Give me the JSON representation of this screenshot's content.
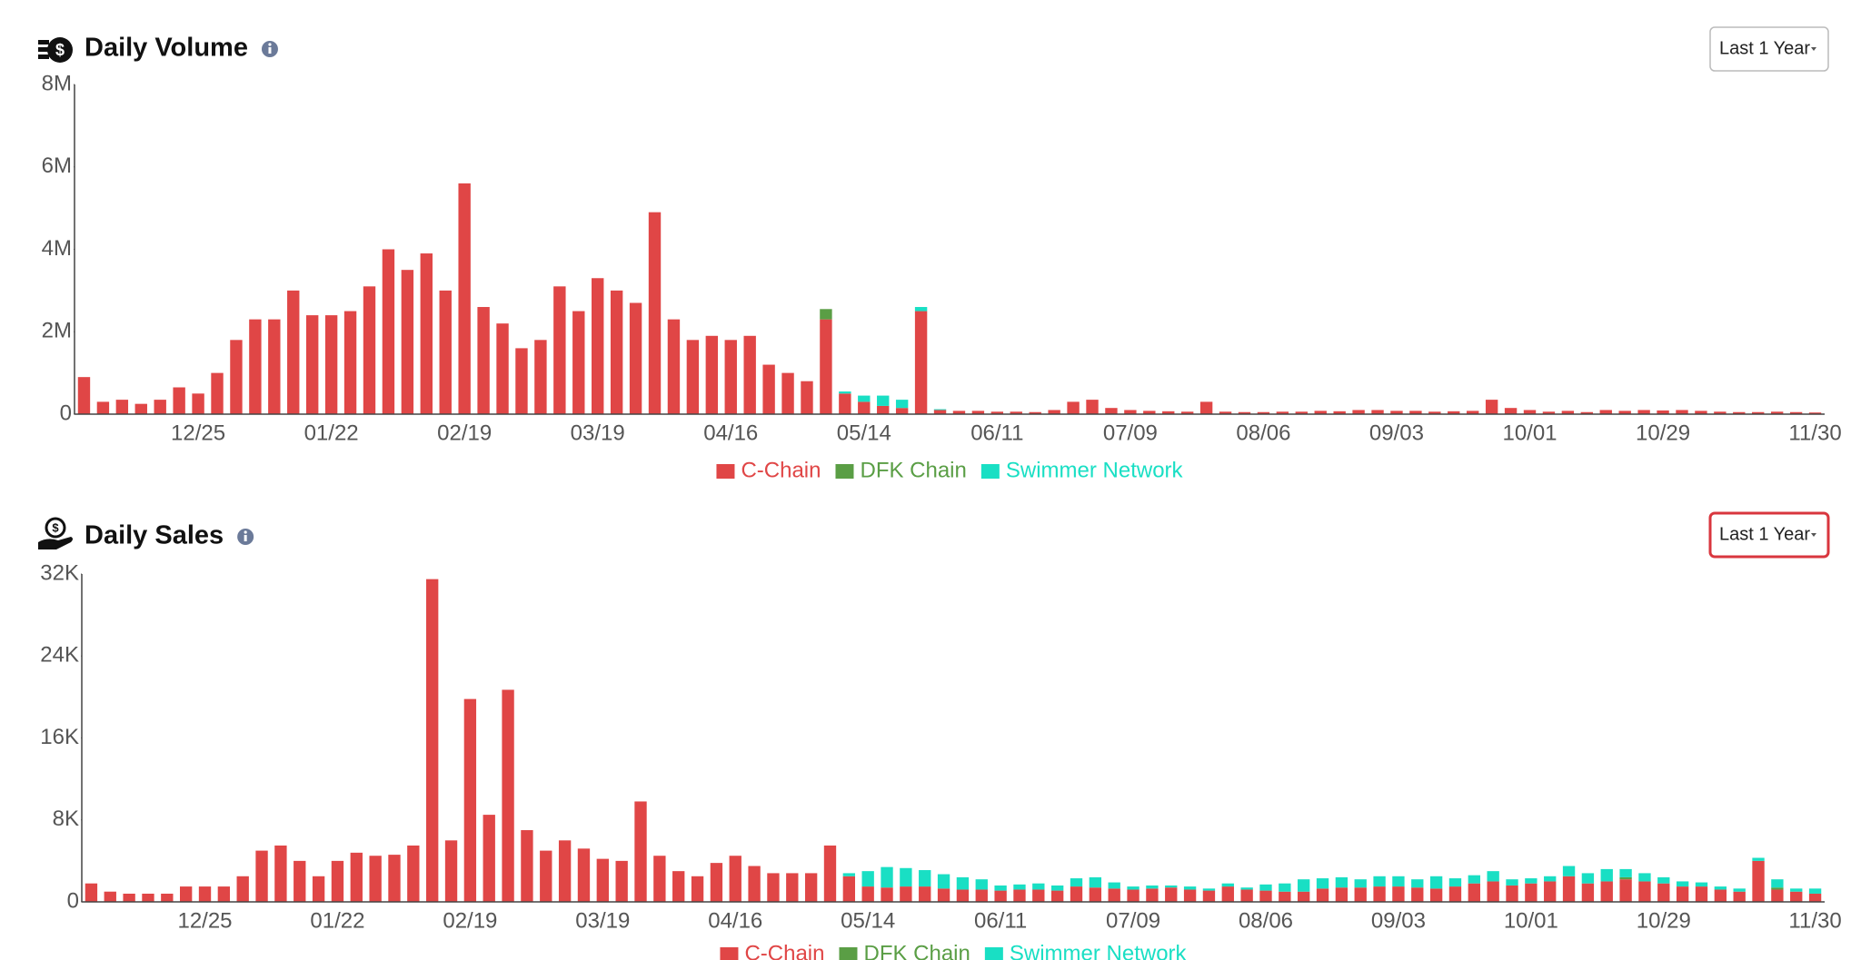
{
  "range_selectors": [
    "Last 1 Year",
    "Last 1 Year"
  ],
  "chart_data": [
    {
      "type": "bar",
      "stacked": true,
      "title": "Daily Volume",
      "categories": [
        null,
        null,
        null,
        null,
        null,
        null,
        "12/25",
        null,
        null,
        null,
        null,
        null,
        null,
        "01/22",
        null,
        null,
        null,
        null,
        null,
        null,
        "02/19",
        null,
        null,
        null,
        null,
        null,
        null,
        "03/19",
        null,
        null,
        null,
        null,
        null,
        null,
        "04/16",
        null,
        null,
        null,
        null,
        null,
        null,
        "05/14",
        null,
        null,
        null,
        null,
        null,
        null,
        "06/11",
        null,
        null,
        null,
        null,
        null,
        null,
        "07/09",
        null,
        null,
        null,
        null,
        null,
        null,
        "08/06",
        null,
        null,
        null,
        null,
        null,
        null,
        "09/03",
        null,
        null,
        null,
        null,
        null,
        null,
        "10/01",
        null,
        null,
        null,
        null,
        null,
        null,
        "10/29",
        null,
        null,
        null,
        null,
        null,
        null,
        null,
        "11/30"
      ],
      "series": [
        {
          "name": "C-Chain",
          "color": "#e04646",
          "values": [
            900000,
            300000,
            350000,
            250000,
            350000,
            650000,
            500000,
            1000000,
            1800000,
            2300000,
            2300000,
            3000000,
            2400000,
            2400000,
            2500000,
            3100000,
            4000000,
            3500000,
            3900000,
            3000000,
            5600000,
            2600000,
            2200000,
            1600000,
            1800000,
            3100000,
            2500000,
            3300000,
            3000000,
            2700000,
            4900000,
            2300000,
            1800000,
            1900000,
            1800000,
            1900000,
            1200000,
            1000000,
            800000,
            2300000,
            500000,
            300000,
            200000,
            150000,
            2500000,
            100000,
            80000,
            80000,
            60000,
            60000,
            50000,
            100000,
            300000,
            350000,
            150000,
            100000,
            80000,
            70000,
            60000,
            300000,
            60000,
            50000,
            50000,
            60000,
            60000,
            80000,
            70000,
            100000,
            100000,
            80000,
            80000,
            60000,
            70000,
            80000,
            350000,
            150000,
            100000,
            60000,
            80000,
            50000,
            100000,
            80000,
            100000,
            90000,
            100000,
            80000,
            60000,
            50000,
            50000,
            60000,
            50000,
            40000
          ]
        },
        {
          "name": "DFK Chain",
          "color": "#5a9e45",
          "values": [
            0,
            0,
            0,
            0,
            0,
            0,
            0,
            0,
            0,
            0,
            0,
            0,
            0,
            0,
            0,
            0,
            0,
            0,
            0,
            0,
            0,
            0,
            0,
            0,
            0,
            0,
            0,
            0,
            0,
            0,
            0,
            0,
            0,
            0,
            0,
            0,
            0,
            0,
            0,
            250000,
            0,
            0,
            0,
            0,
            0,
            0,
            0,
            0,
            0,
            0,
            0,
            0,
            0,
            0,
            0,
            0,
            0,
            0,
            0,
            0,
            0,
            0,
            0,
            0,
            0,
            0,
            0,
            0,
            0,
            0,
            0,
            0,
            0,
            0,
            0,
            0,
            0,
            0,
            0,
            0,
            0,
            0,
            0,
            0,
            0,
            0,
            0,
            0,
            0,
            0,
            0,
            0
          ]
        },
        {
          "name": "Swimmer Network",
          "color": "#19dfc4",
          "values": [
            0,
            0,
            0,
            0,
            0,
            0,
            0,
            0,
            0,
            0,
            0,
            0,
            0,
            0,
            0,
            0,
            0,
            0,
            0,
            0,
            0,
            0,
            0,
            0,
            0,
            0,
            0,
            0,
            0,
            0,
            0,
            0,
            0,
            0,
            0,
            0,
            0,
            0,
            0,
            0,
            50000,
            150000,
            250000,
            200000,
            100000,
            20000,
            0,
            0,
            0,
            0,
            0,
            0,
            0,
            0,
            0,
            0,
            0,
            0,
            0,
            0,
            0,
            0,
            0,
            0,
            0,
            0,
            0,
            0,
            0,
            0,
            0,
            0,
            0,
            0,
            0,
            0,
            0,
            0,
            0,
            0,
            0,
            0,
            0,
            0,
            0,
            0,
            0,
            0,
            0,
            0,
            0,
            0
          ]
        }
      ],
      "ylim": [
        0,
        8000000
      ],
      "yticks": [
        0,
        {
          "value": 2000000,
          "label": "2M"
        },
        {
          "value": 4000000,
          "label": "4M"
        },
        {
          "value": 6000000,
          "label": "6M"
        },
        {
          "value": 8000000,
          "label": "8M"
        }
      ],
      "legend": "bottom"
    },
    {
      "type": "bar",
      "stacked": true,
      "title": "Daily Sales",
      "categories": [
        null,
        null,
        null,
        null,
        null,
        null,
        "12/25",
        null,
        null,
        null,
        null,
        null,
        null,
        "01/22",
        null,
        null,
        null,
        null,
        null,
        null,
        "02/19",
        null,
        null,
        null,
        null,
        null,
        null,
        "03/19",
        null,
        null,
        null,
        null,
        null,
        null,
        "04/16",
        null,
        null,
        null,
        null,
        null,
        null,
        "05/14",
        null,
        null,
        null,
        null,
        null,
        null,
        "06/11",
        null,
        null,
        null,
        null,
        null,
        null,
        "07/09",
        null,
        null,
        null,
        null,
        null,
        null,
        "08/06",
        null,
        null,
        null,
        null,
        null,
        null,
        "09/03",
        null,
        null,
        null,
        null,
        null,
        null,
        "10/01",
        null,
        null,
        null,
        null,
        null,
        null,
        "10/29",
        null,
        null,
        null,
        null,
        null,
        null,
        null,
        "11/30"
      ],
      "series": [
        {
          "name": "C-Chain",
          "color": "#e04646",
          "values": [
            1800,
            1000,
            800,
            800,
            800,
            1500,
            1500,
            1500,
            2500,
            5000,
            5500,
            4000,
            2500,
            4000,
            4800,
            4500,
            4600,
            5500,
            31500,
            6000,
            19800,
            8500,
            20700,
            7000,
            5000,
            6000,
            5200,
            4200,
            4000,
            9800,
            4500,
            3000,
            2500,
            3800,
            4500,
            3500,
            2800,
            2800,
            2800,
            5500,
            2500,
            1500,
            1400,
            1500,
            1500,
            1300,
            1200,
            1200,
            1100,
            1200,
            1200,
            1100,
            1500,
            1400,
            1300,
            1200,
            1300,
            1400,
            1200,
            1100,
            1500,
            1200,
            1100,
            1000,
            1000,
            1300,
            1400,
            1400,
            1500,
            1500,
            1400,
            1300,
            1500,
            1800,
            2000,
            1600,
            1800,
            2000,
            2500,
            1800,
            2000,
            2200,
            2000,
            1800,
            1500,
            1500,
            1200,
            1000,
            4000,
            1200,
            1000,
            800
          ]
        },
        {
          "name": "DFK Chain",
          "color": "#5a9e45",
          "values": [
            0,
            0,
            0,
            0,
            0,
            0,
            0,
            0,
            0,
            0,
            0,
            0,
            0,
            0,
            0,
            0,
            0,
            0,
            0,
            0,
            0,
            0,
            0,
            0,
            0,
            0,
            0,
            0,
            0,
            0,
            0,
            0,
            0,
            0,
            0,
            0,
            0,
            0,
            0,
            0,
            0,
            0,
            0,
            0,
            0,
            0,
            0,
            0,
            0,
            0,
            0,
            0,
            0,
            0,
            0,
            0,
            0,
            0,
            0,
            0,
            0,
            0,
            0,
            0,
            0,
            0,
            0,
            0,
            0,
            0,
            0,
            0,
            0,
            0,
            0,
            0,
            0,
            0,
            0,
            0,
            0,
            200,
            0,
            0,
            0,
            0,
            0,
            0,
            0,
            200,
            0,
            0
          ]
        },
        {
          "name": "Swimmer Network",
          "color": "#19dfc4",
          "values": [
            0,
            0,
            0,
            0,
            0,
            0,
            0,
            0,
            0,
            0,
            0,
            0,
            0,
            0,
            0,
            0,
            0,
            0,
            0,
            0,
            0,
            0,
            0,
            0,
            0,
            0,
            0,
            0,
            0,
            0,
            0,
            0,
            0,
            0,
            0,
            0,
            0,
            0,
            0,
            0,
            300,
            1500,
            2000,
            1800,
            1600,
            1400,
            1200,
            1000,
            500,
            500,
            600,
            500,
            800,
            1000,
            600,
            300,
            300,
            200,
            300,
            200,
            300,
            200,
            600,
            800,
            1200,
            1000,
            1000,
            800,
            1000,
            1000,
            800,
            1200,
            800,
            800,
            1000,
            600,
            500,
            500,
            1000,
            1000,
            1200,
            800,
            800,
            600,
            500,
            400,
            300,
            300,
            300,
            800,
            300,
            500
          ]
        }
      ],
      "ylim": [
        0,
        32000
      ],
      "yticks": [
        0,
        {
          "value": 8000,
          "label": "8K"
        },
        {
          "value": 16000,
          "label": "16K"
        },
        {
          "value": 24000,
          "label": "24K"
        },
        {
          "value": 32000,
          "label": "32K"
        }
      ],
      "legend": "bottom"
    }
  ]
}
